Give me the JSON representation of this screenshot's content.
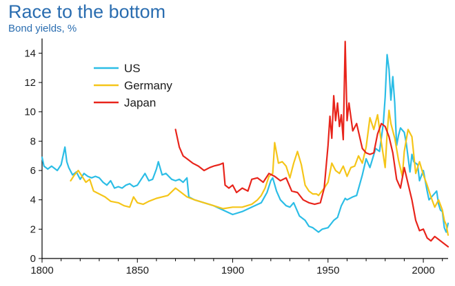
{
  "title": "Race to the bottom",
  "subtitle": "Bond yields, %",
  "chart_data": {
    "type": "line",
    "title": "Race to the bottom",
    "subtitle": "Bond yields, %",
    "xlabel": "",
    "ylabel": "Bond yields, %",
    "xlim": [
      1800,
      2013
    ],
    "ylim": [
      0,
      15
    ],
    "x_ticks": [
      1800,
      1850,
      1900,
      1950,
      2000
    ],
    "y_ticks": [
      0,
      2,
      4,
      6,
      8,
      10,
      12,
      14
    ],
    "grid": false,
    "legend": {
      "placement": "top-left",
      "entries": [
        "US",
        "Germany",
        "Japan"
      ]
    },
    "series": [
      {
        "name": "US",
        "color": "#2bbde6",
        "x": [
          1800,
          1801,
          1803,
          1805,
          1808,
          1810,
          1812,
          1813,
          1814,
          1816,
          1818,
          1820,
          1822,
          1824,
          1826,
          1828,
          1830,
          1832,
          1834,
          1836,
          1838,
          1840,
          1842,
          1844,
          1846,
          1848,
          1850,
          1852,
          1854,
          1856,
          1858,
          1860,
          1861,
          1863,
          1865,
          1868,
          1870,
          1872,
          1874,
          1876,
          1877,
          1880,
          1885,
          1890,
          1895,
          1900,
          1905,
          1910,
          1915,
          1918,
          1920,
          1921,
          1923,
          1925,
          1928,
          1930,
          1932,
          1935,
          1938,
          1940,
          1942,
          1945,
          1947,
          1950,
          1953,
          1955,
          1957,
          1959,
          1960,
          1963,
          1965,
          1968,
          1970,
          1972,
          1975,
          1977,
          1979,
          1980,
          1981,
          1982,
          1983,
          1984,
          1985,
          1986,
          1987,
          1988,
          1990,
          1991,
          1993,
          1994,
          1995,
          1997,
          1998,
          2000,
          2002,
          2003,
          2005,
          2007,
          2008,
          2009,
          2010,
          2011,
          2012,
          2013
        ],
        "values": [
          6.9,
          6.3,
          6.1,
          6.3,
          6.0,
          6.4,
          7.6,
          6.6,
          6.2,
          5.7,
          5.9,
          5.4,
          5.8,
          5.6,
          5.5,
          5.6,
          5.5,
          5.2,
          5.0,
          5.3,
          4.8,
          4.9,
          4.8,
          5.0,
          5.1,
          4.9,
          5.0,
          5.4,
          5.8,
          5.3,
          5.4,
          6.1,
          6.6,
          5.7,
          5.8,
          5.4,
          5.3,
          5.4,
          5.2,
          5.5,
          4.2,
          4.0,
          3.8,
          3.6,
          3.3,
          3.0,
          3.2,
          3.5,
          3.8,
          4.5,
          5.3,
          5.5,
          4.6,
          4.0,
          3.6,
          3.5,
          3.8,
          2.9,
          2.6,
          2.2,
          2.1,
          1.8,
          2.0,
          2.1,
          2.6,
          2.8,
          3.6,
          4.1,
          4.0,
          4.2,
          4.3,
          5.7,
          6.8,
          6.2,
          7.5,
          7.3,
          9.2,
          11.0,
          13.9,
          12.9,
          10.8,
          12.4,
          10.6,
          7.7,
          8.4,
          8.9,
          8.6,
          7.9,
          5.9,
          7.1,
          6.6,
          6.4,
          5.3,
          6.0,
          4.6,
          4.0,
          4.3,
          4.6,
          3.7,
          3.3,
          3.2,
          2.1,
          1.8,
          2.4
        ]
      },
      {
        "name": "Germany",
        "color": "#f5c518",
        "x": [
          1815,
          1817,
          1819,
          1821,
          1823,
          1825,
          1827,
          1830,
          1833,
          1836,
          1840,
          1843,
          1846,
          1848,
          1850,
          1853,
          1856,
          1860,
          1863,
          1866,
          1870,
          1873,
          1876,
          1880,
          1885,
          1890,
          1895,
          1900,
          1905,
          1910,
          1913,
          1915,
          1917,
          1919,
          1921,
          1922,
          1924,
          1926,
          1928,
          1930,
          1932,
          1934,
          1936,
          1938,
          1940,
          1942,
          1944,
          1945,
          1948,
          1950,
          1952,
          1954,
          1956,
          1958,
          1960,
          1962,
          1964,
          1966,
          1968,
          1970,
          1972,
          1974,
          1976,
          1978,
          1980,
          1981,
          1982,
          1983,
          1985,
          1987,
          1989,
          1990,
          1992,
          1994,
          1996,
          1998,
          2000,
          2002,
          2004,
          2006,
          2008,
          2010,
          2011,
          2012,
          2013
        ],
        "values": [
          5.3,
          5.7,
          6.0,
          5.6,
          5.2,
          5.4,
          4.6,
          4.4,
          4.2,
          3.9,
          3.8,
          3.6,
          3.5,
          4.2,
          3.8,
          3.7,
          3.9,
          4.1,
          4.2,
          4.3,
          4.8,
          4.5,
          4.2,
          4.0,
          3.8,
          3.6,
          3.4,
          3.5,
          3.5,
          3.7,
          4.0,
          4.3,
          4.8,
          5.6,
          5.8,
          7.9,
          6.5,
          6.6,
          6.3,
          5.5,
          6.5,
          7.3,
          6.4,
          5.0,
          4.6,
          4.4,
          4.4,
          4.3,
          4.8,
          5.2,
          6.5,
          6.0,
          5.8,
          6.3,
          5.6,
          6.2,
          6.3,
          7.0,
          6.5,
          7.6,
          9.6,
          8.8,
          9.8,
          7.9,
          6.2,
          8.5,
          10.1,
          9.2,
          8.2,
          6.7,
          5.6,
          7.3,
          8.8,
          8.3,
          5.8,
          6.6,
          5.7,
          5.0,
          4.2,
          3.5,
          4.0,
          3.3,
          2.6,
          2.3,
          1.6
        ]
      },
      {
        "name": "Japan",
        "color": "#e8241b",
        "x": [
          1870,
          1872,
          1874,
          1876,
          1879,
          1882,
          1885,
          1888,
          1890,
          1893,
          1895,
          1896,
          1898,
          1900,
          1902,
          1905,
          1908,
          1910,
          1913,
          1916,
          1919,
          1922,
          1925,
          1928,
          1931,
          1934,
          1937,
          1940,
          1943,
          1946,
          1948,
          1950,
          1951,
          1952,
          1953,
          1954,
          1955,
          1956,
          1957,
          1958,
          1959,
          1960,
          1961,
          1963,
          1965,
          1968,
          1970,
          1972,
          1974,
          1976,
          1978,
          1980,
          1982,
          1984,
          1986,
          1988,
          1990,
          1992,
          1994,
          1996,
          1998,
          2000,
          2002,
          2004,
          2006,
          2008,
          2010,
          2012,
          2013
        ],
        "values": [
          8.8,
          7.6,
          7.0,
          6.8,
          6.5,
          6.3,
          6.0,
          6.2,
          6.3,
          6.4,
          6.5,
          5.0,
          4.8,
          5.0,
          4.5,
          4.8,
          4.6,
          5.4,
          5.5,
          5.2,
          5.8,
          5.6,
          5.3,
          5.5,
          4.6,
          4.5,
          4.0,
          3.8,
          3.7,
          3.8,
          4.8,
          7.7,
          9.7,
          8.2,
          11.1,
          9.4,
          10.6,
          9.0,
          9.8,
          8.1,
          14.8,
          9.4,
          10.6,
          8.7,
          9.2,
          7.5,
          7.2,
          7.1,
          7.2,
          8.5,
          9.2,
          9.0,
          8.3,
          7.2,
          5.4,
          4.8,
          6.2,
          5.1,
          4.0,
          2.6,
          1.9,
          2.0,
          1.4,
          1.2,
          1.5,
          1.3,
          1.1,
          0.9,
          0.8
        ]
      }
    ]
  }
}
